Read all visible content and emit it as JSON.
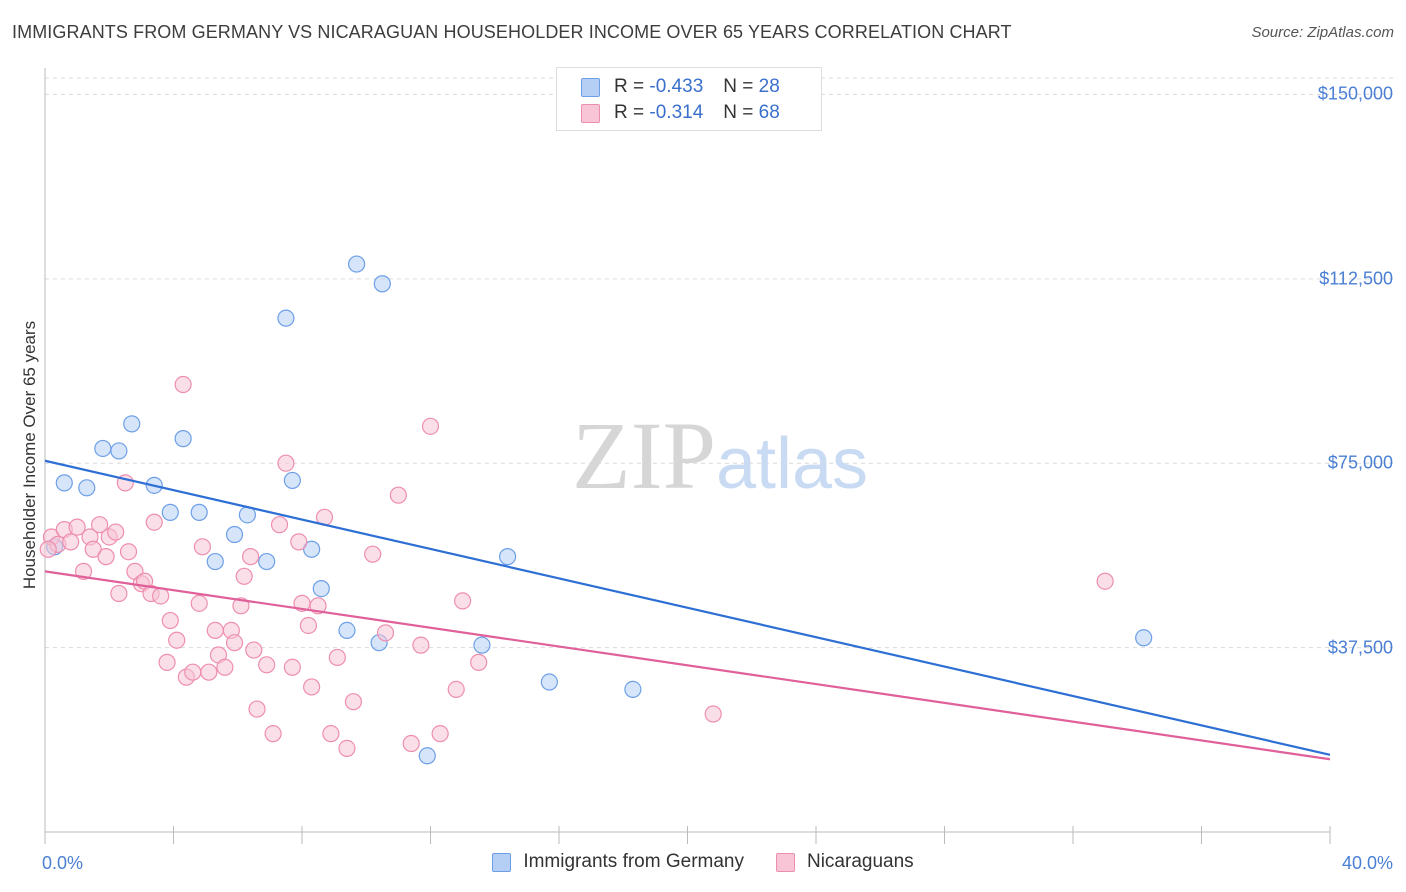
{
  "chart_data": {
    "type": "scatter",
    "title": "IMMIGRANTS FROM GERMANY VS NICARAGUAN HOUSEHOLDER INCOME OVER 65 YEARS CORRELATION CHART",
    "source": "Source: ZipAtlas.com",
    "ylabel": "Householder Income Over 65 years",
    "xlabel": "",
    "xlim": [
      0,
      40
    ],
    "ylim": [
      0,
      157000
    ],
    "x_tick_labels": [
      "0.0%",
      "40.0%"
    ],
    "y_ticks": [
      {
        "value": 150000,
        "label": "$150,000"
      },
      {
        "value": 112500,
        "label": "$112,500"
      },
      {
        "value": 75000,
        "label": "$75,000"
      },
      {
        "value": 37500,
        "label": "$37,500"
      }
    ],
    "grid": true,
    "legend_position": "top-center",
    "watermark": "ZIPatlas",
    "series": [
      {
        "name": "Immigrants from Germany",
        "color": "#6d9fe8",
        "fill": "#b5cff4",
        "stats": {
          "r_label": "R =",
          "r_value": "-0.433",
          "n_label": "N =",
          "n_value": "28"
        },
        "trend": {
          "x": [
            0,
            40
          ],
          "y": [
            75500,
            15700
          ],
          "color": "#2d6fd4"
        },
        "points": [
          [
            0.3,
            58000
          ],
          [
            0.6,
            71000
          ],
          [
            1.3,
            70000
          ],
          [
            1.8,
            78000
          ],
          [
            2.3,
            77500
          ],
          [
            2.7,
            83000
          ],
          [
            3.4,
            70500
          ],
          [
            3.9,
            65000
          ],
          [
            4.3,
            80000
          ],
          [
            4.8,
            65000
          ],
          [
            5.3,
            55000
          ],
          [
            5.9,
            60500
          ],
          [
            6.3,
            64500
          ],
          [
            6.9,
            55000
          ],
          [
            7.5,
            104500
          ],
          [
            7.7,
            71500
          ],
          [
            8.3,
            57500
          ],
          [
            8.6,
            49500
          ],
          [
            9.4,
            41000
          ],
          [
            9.7,
            115500
          ],
          [
            10.5,
            111500
          ],
          [
            10.4,
            38500
          ],
          [
            11.9,
            15500
          ],
          [
            13.6,
            38000
          ],
          [
            14.4,
            56000
          ],
          [
            15.7,
            30500
          ],
          [
            18.3,
            29000
          ],
          [
            34.2,
            39500
          ]
        ]
      },
      {
        "name": "Nicaraguans",
        "color": "#ee8eae",
        "fill": "#f8c5d6",
        "stats": {
          "r_label": "R =",
          "r_value": "-0.314",
          "n_label": "N =",
          "n_value": "68"
        },
        "trend": {
          "x": [
            0,
            40
          ],
          "y": [
            53000,
            14800
          ],
          "color": "#e0609a"
        },
        "points": [
          [
            0.2,
            60000
          ],
          [
            0.4,
            58500
          ],
          [
            0.6,
            61500
          ],
          [
            0.8,
            59000
          ],
          [
            1.0,
            62000
          ],
          [
            1.2,
            53000
          ],
          [
            1.4,
            60000
          ],
          [
            1.5,
            57500
          ],
          [
            1.7,
            62500
          ],
          [
            1.9,
            56000
          ],
          [
            2.0,
            60000
          ],
          [
            2.2,
            61000
          ],
          [
            2.3,
            48500
          ],
          [
            2.5,
            71000
          ],
          [
            2.6,
            57000
          ],
          [
            2.8,
            53000
          ],
          [
            3.0,
            50500
          ],
          [
            3.1,
            51000
          ],
          [
            3.3,
            48500
          ],
          [
            3.4,
            63000
          ],
          [
            3.6,
            48000
          ],
          [
            3.8,
            34500
          ],
          [
            3.9,
            43000
          ],
          [
            4.1,
            39000
          ],
          [
            4.3,
            91000
          ],
          [
            4.4,
            31500
          ],
          [
            4.6,
            32500
          ],
          [
            4.8,
            46500
          ],
          [
            4.9,
            58000
          ],
          [
            5.1,
            32500
          ],
          [
            5.3,
            41000
          ],
          [
            5.4,
            36000
          ],
          [
            5.6,
            33500
          ],
          [
            5.8,
            41000
          ],
          [
            5.9,
            38500
          ],
          [
            6.1,
            46000
          ],
          [
            6.2,
            52000
          ],
          [
            6.4,
            56000
          ],
          [
            6.5,
            37000
          ],
          [
            6.6,
            25000
          ],
          [
            6.9,
            34000
          ],
          [
            7.1,
            20000
          ],
          [
            7.3,
            62500
          ],
          [
            7.5,
            75000
          ],
          [
            7.7,
            33500
          ],
          [
            7.9,
            59000
          ],
          [
            8.0,
            46500
          ],
          [
            8.2,
            42000
          ],
          [
            8.3,
            29500
          ],
          [
            8.5,
            46000
          ],
          [
            8.7,
            64000
          ],
          [
            8.9,
            20000
          ],
          [
            9.1,
            35500
          ],
          [
            9.4,
            17000
          ],
          [
            9.6,
            26500
          ],
          [
            10.2,
            56500
          ],
          [
            10.6,
            40500
          ],
          [
            11.0,
            68500
          ],
          [
            11.4,
            18000
          ],
          [
            11.7,
            38000
          ],
          [
            12.0,
            82500
          ],
          [
            12.3,
            20000
          ],
          [
            12.8,
            29000
          ],
          [
            13.0,
            47000
          ],
          [
            13.5,
            34500
          ],
          [
            20.8,
            24000
          ],
          [
            33.0,
            51000
          ],
          [
            0.1,
            57500
          ]
        ]
      }
    ]
  }
}
